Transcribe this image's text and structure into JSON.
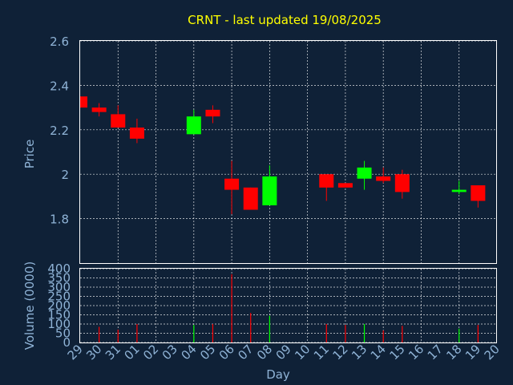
{
  "chart_data": {
    "type": "candlestick",
    "title": "CRNT - last updated 19/08/2025",
    "colors": {
      "background": "#0f2137",
      "up": "#00ff00",
      "down": "#ff0000",
      "title": "#ffff00",
      "axis_text": "#8fb3d6",
      "grid": "#ffffff"
    },
    "x_labels": [
      "29",
      "30",
      "31",
      "01",
      "02",
      "03",
      "04",
      "05",
      "06",
      "07",
      "08",
      "09",
      "10",
      "11",
      "12",
      "13",
      "14",
      "15",
      "16",
      "17",
      "18",
      "19",
      "20"
    ],
    "xlabel": "Day",
    "price": {
      "ylabel": "Price",
      "ylim": [
        1.6,
        2.6
      ],
      "yticks": [
        1.8,
        2.0,
        2.2,
        2.4,
        2.6
      ],
      "ytick_labels": [
        "1.8",
        "2",
        "2.2",
        "2.4",
        "2.6"
      ],
      "candles": [
        {
          "x": "29",
          "open": 2.35,
          "high": 2.35,
          "low": 2.3,
          "close": 2.3
        },
        {
          "x": "30",
          "open": 2.3,
          "high": 2.32,
          "low": 2.26,
          "close": 2.28
        },
        {
          "x": "31",
          "open": 2.27,
          "high": 2.31,
          "low": 2.21,
          "close": 2.21
        },
        {
          "x": "01",
          "open": 2.21,
          "high": 2.25,
          "low": 2.14,
          "close": 2.16
        },
        {
          "x": "04",
          "open": 2.18,
          "high": 2.29,
          "low": 2.18,
          "close": 2.26
        },
        {
          "x": "05",
          "open": 2.29,
          "high": 2.31,
          "low": 2.23,
          "close": 2.26
        },
        {
          "x": "06",
          "open": 1.98,
          "high": 2.06,
          "low": 1.82,
          "close": 1.93
        },
        {
          "x": "07",
          "open": 1.94,
          "high": 1.94,
          "low": 1.84,
          "close": 1.84
        },
        {
          "x": "08",
          "open": 1.86,
          "high": 2.04,
          "low": 1.86,
          "close": 1.99
        },
        {
          "x": "11",
          "open": 2.0,
          "high": 2.0,
          "low": 1.88,
          "close": 1.94
        },
        {
          "x": "12",
          "open": 1.96,
          "high": 1.96,
          "low": 1.94,
          "close": 1.94
        },
        {
          "x": "13",
          "open": 1.98,
          "high": 2.06,
          "low": 1.93,
          "close": 2.03
        },
        {
          "x": "14",
          "open": 1.99,
          "high": 2.03,
          "low": 1.96,
          "close": 1.97
        },
        {
          "x": "15",
          "open": 2.0,
          "high": 2.02,
          "low": 1.89,
          "close": 1.92
        },
        {
          "x": "18",
          "open": 1.92,
          "high": 1.97,
          "low": 1.91,
          "close": 1.93
        },
        {
          "x": "19",
          "open": 1.95,
          "high": 1.95,
          "low": 1.85,
          "close": 1.88
        }
      ]
    },
    "volume": {
      "ylabel": "Volume (0000)",
      "ylim": [
        0,
        400
      ],
      "yticks": [
        0,
        50,
        100,
        150,
        200,
        250,
        300,
        350,
        400
      ],
      "bars": [
        {
          "x": "30",
          "value": 85,
          "dir": "down"
        },
        {
          "x": "31",
          "value": 70,
          "dir": "down"
        },
        {
          "x": "01",
          "value": 100,
          "dir": "down"
        },
        {
          "x": "04",
          "value": 95,
          "dir": "up"
        },
        {
          "x": "05",
          "value": 100,
          "dir": "down"
        },
        {
          "x": "06",
          "value": 370,
          "dir": "down"
        },
        {
          "x": "07",
          "value": 160,
          "dir": "down"
        },
        {
          "x": "08",
          "value": 145,
          "dir": "up"
        },
        {
          "x": "11",
          "value": 100,
          "dir": "down"
        },
        {
          "x": "12",
          "value": 95,
          "dir": "down"
        },
        {
          "x": "13",
          "value": 100,
          "dir": "up"
        },
        {
          "x": "14",
          "value": 65,
          "dir": "down"
        },
        {
          "x": "15",
          "value": 90,
          "dir": "down"
        },
        {
          "x": "18",
          "value": 75,
          "dir": "up"
        },
        {
          "x": "19",
          "value": 95,
          "dir": "down"
        }
      ]
    }
  }
}
